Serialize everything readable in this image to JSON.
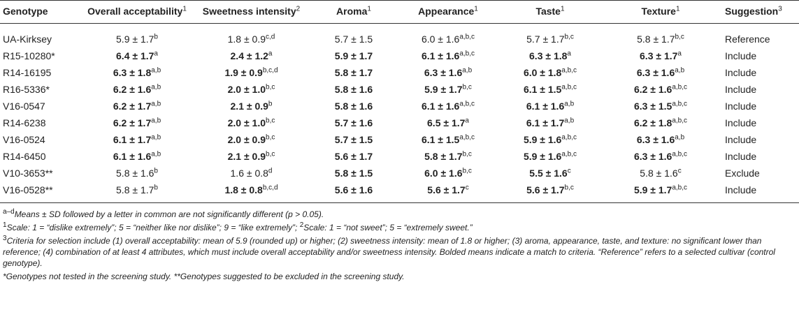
{
  "headers": [
    {
      "text": "Genotype",
      "sup": ""
    },
    {
      "text": "Overall acceptability",
      "sup": "1"
    },
    {
      "text": "Sweetness intensity",
      "sup": "2"
    },
    {
      "text": "Aroma",
      "sup": "1"
    },
    {
      "text": "Appearance",
      "sup": "1"
    },
    {
      "text": "Taste",
      "sup": "1"
    },
    {
      "text": "Texture",
      "sup": "1"
    },
    {
      "text": "Suggestion",
      "sup": "3"
    }
  ],
  "rows": [
    {
      "genotype": "UA-Kirksey",
      "cells": [
        {
          "v": "5.9 ± 1.7",
          "s": "b",
          "b": false
        },
        {
          "v": "1.8 ± 0.9",
          "s": "c,d",
          "b": false
        },
        {
          "v": "5.7 ± 1.5",
          "s": "",
          "b": false
        },
        {
          "v": "6.0 ± 1.6",
          "s": "a,b,c",
          "b": false
        },
        {
          "v": "5.7 ± 1.7",
          "s": "b,c",
          "b": false
        },
        {
          "v": "5.8 ± 1.7",
          "s": "b,c",
          "b": false
        }
      ],
      "suggestion": "Reference"
    },
    {
      "genotype": "R15-10280*",
      "cells": [
        {
          "v": "6.4 ± 1.7",
          "s": "a",
          "b": true
        },
        {
          "v": "2.4 ± 1.2",
          "s": "a",
          "b": true
        },
        {
          "v": "5.9 ± 1.7",
          "s": "",
          "b": true
        },
        {
          "v": "6.1 ± 1.6",
          "s": "a,b,c",
          "b": true
        },
        {
          "v": "6.3 ± 1.8",
          "s": "a",
          "b": true
        },
        {
          "v": "6.3 ± 1.7",
          "s": "a",
          "b": true
        }
      ],
      "suggestion": "Include"
    },
    {
      "genotype": "R14-16195",
      "cells": [
        {
          "v": "6.3 ± 1.8",
          "s": "a,b",
          "b": true
        },
        {
          "v": "1.9 ± 0.9",
          "s": "b,c,d",
          "b": true
        },
        {
          "v": "5.8 ± 1.7",
          "s": "",
          "b": true
        },
        {
          "v": "6.3 ± 1.6",
          "s": "a,b",
          "b": true
        },
        {
          "v": "6.0 ± 1.8",
          "s": "a,b,c",
          "b": true
        },
        {
          "v": "6.3 ± 1.6",
          "s": "a,b",
          "b": true
        }
      ],
      "suggestion": "Include"
    },
    {
      "genotype": "R16-5336*",
      "cells": [
        {
          "v": "6.2 ± 1.6",
          "s": "a,b",
          "b": true
        },
        {
          "v": "2.0 ± 1.0",
          "s": "b,c",
          "b": true
        },
        {
          "v": "5.8 ± 1.6",
          "s": "",
          "b": true
        },
        {
          "v": "5.9 ± 1.7",
          "s": "b,c",
          "b": true
        },
        {
          "v": "6.1 ± 1.5",
          "s": "a,b,c",
          "b": true
        },
        {
          "v": "6.2 ± 1.6",
          "s": "a,b,c",
          "b": true
        }
      ],
      "suggestion": "Include"
    },
    {
      "genotype": "V16-0547",
      "cells": [
        {
          "v": "6.2 ± 1.7",
          "s": "a,b",
          "b": true
        },
        {
          "v": "2.1 ± 0.9",
          "s": "b",
          "b": true
        },
        {
          "v": "5.8 ± 1.6",
          "s": "",
          "b": true
        },
        {
          "v": "6.1 ± 1.6",
          "s": "a,b,c",
          "b": true
        },
        {
          "v": "6.1 ± 1.6",
          "s": "a,b",
          "b": true
        },
        {
          "v": "6.3 ± 1.5",
          "s": "a,b,c",
          "b": true
        }
      ],
      "suggestion": "Include"
    },
    {
      "genotype": "R14-6238",
      "cells": [
        {
          "v": "6.2 ± 1.7",
          "s": "a,b",
          "b": true
        },
        {
          "v": "2.0 ± 1.0",
          "s": "b,c",
          "b": true
        },
        {
          "v": "5.7 ± 1.6",
          "s": "",
          "b": true
        },
        {
          "v": "6.5 ± 1.7",
          "s": "a",
          "b": true
        },
        {
          "v": "6.1 ± 1.7",
          "s": "a,b",
          "b": true
        },
        {
          "v": "6.2 ± 1.8",
          "s": "a,b,c",
          "b": true
        }
      ],
      "suggestion": "Include"
    },
    {
      "genotype": "V16-0524",
      "cells": [
        {
          "v": "6.1 ± 1.7",
          "s": "a,b",
          "b": true
        },
        {
          "v": "2.0 ± 0.9",
          "s": "b,c",
          "b": true
        },
        {
          "v": "5.7 ± 1.5",
          "s": "",
          "b": true
        },
        {
          "v": "6.1 ± 1.5",
          "s": "a,b,c",
          "b": true
        },
        {
          "v": "5.9 ± 1.6",
          "s": "a,b,c",
          "b": true
        },
        {
          "v": "6.3 ± 1.6",
          "s": "a,b",
          "b": true
        }
      ],
      "suggestion": "Include"
    },
    {
      "genotype": "R14-6450",
      "cells": [
        {
          "v": "6.1 ± 1.6",
          "s": "a,b",
          "b": true
        },
        {
          "v": "2.1 ± 0.9",
          "s": "b,c",
          "b": true
        },
        {
          "v": "5.6 ± 1.7",
          "s": "",
          "b": true
        },
        {
          "v": "5.8 ± 1.7",
          "s": "b,c",
          "b": true
        },
        {
          "v": "5.9 ± 1.6",
          "s": "a,b,c",
          "b": true
        },
        {
          "v": "6.3 ± 1.6",
          "s": "a,b,c",
          "b": true
        }
      ],
      "suggestion": "Include"
    },
    {
      "genotype": "V10-3653**",
      "cells": [
        {
          "v": "5.8 ± 1.6",
          "s": "b",
          "b": false
        },
        {
          "v": "1.6 ± 0.8",
          "s": "d",
          "b": false
        },
        {
          "v": "5.8 ± 1.5",
          "s": "",
          "b": true
        },
        {
          "v": "6.0 ± 1.6",
          "s": "b,c",
          "b": true
        },
        {
          "v": "5.5 ± 1.6",
          "s": "c",
          "b": true
        },
        {
          "v": "5.8 ± 1.6",
          "s": "c",
          "b": false
        }
      ],
      "suggestion": "Exclude"
    },
    {
      "genotype": "V16-0528**",
      "cells": [
        {
          "v": "5.8 ± 1.7",
          "s": "b",
          "b": false
        },
        {
          "v": "1.8 ± 0.8",
          "s": "b,c,d",
          "b": true
        },
        {
          "v": "5.6 ± 1.6",
          "s": "",
          "b": true
        },
        {
          "v": "5.6 ± 1.7",
          "s": "c",
          "b": true
        },
        {
          "v": "5.6 ± 1.7",
          "s": "b,c",
          "b": true
        },
        {
          "v": "5.9 ± 1.7",
          "s": "a,b,c",
          "b": true
        }
      ],
      "suggestion": "Include"
    }
  ],
  "footnotes": {
    "n1_sup": "a–d",
    "n1_text": "Means ± SD followed by a letter in common are not significantly different (p > 0.05).",
    "n2_sup_a": "1",
    "n2_text_a": "Scale: 1 = “dislike extremely”; 5 = “neither like nor dislike”; 9 = “like extremely”; ",
    "n2_sup_b": "2",
    "n2_text_b": "Scale: 1 = “not sweet”; 5 = “extremely sweet.”",
    "n3_sup": "3",
    "n3_text": "Criteria for selection include (1) overall acceptability: mean of 5.9 (rounded up) or higher; (2) sweetness intensity: mean of 1.8 or higher; (3) aroma, appearance, taste, and texture: no significant lower than reference; (4) combination of at least 4 attributes, which must include overall acceptability and/or sweetness intensity. Bolded means indicate a match to criteria. “Reference” refers to a selected cultivar (control genotype).",
    "n4_text": "*Genotypes not tested in the screening study. **Genotypes suggested to be excluded in the screening study."
  }
}
